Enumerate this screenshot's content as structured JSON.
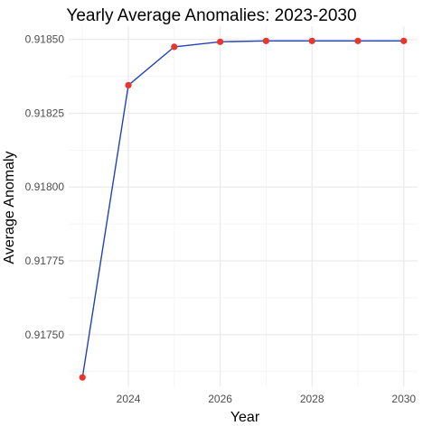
{
  "chart_data": {
    "type": "line",
    "title": "Yearly Average Anomalies: 2023-2030",
    "xlabel": "Year",
    "ylabel": "Average Anomaly",
    "x": [
      2023,
      2024,
      2025,
      2026,
      2027,
      2028,
      2029,
      2030
    ],
    "series": [
      {
        "values": [
          0.917355,
          0.918345,
          0.918475,
          0.918492,
          0.918495,
          0.918495,
          0.918495,
          0.918495
        ]
      }
    ],
    "xticks": [
      2024,
      2026,
      2028,
      2030
    ],
    "yticks": [
      0.9175,
      0.91775,
      0.918,
      0.91825,
      0.9185
    ],
    "ytick_labels": [
      "0.91750",
      "0.91775",
      "0.91800",
      "0.91825",
      "0.91850"
    ],
    "xlim": [
      2022.7,
      2030.3
    ],
    "ylim": [
      0.917325,
      0.918545
    ],
    "grid": true,
    "legend": false,
    "colors": {
      "line": "#2341b8",
      "point": "#e8362d",
      "grid_major": "#ebebeb",
      "grid_minor": "#f5f5f5",
      "tick_text": "#4d4d4d"
    }
  }
}
